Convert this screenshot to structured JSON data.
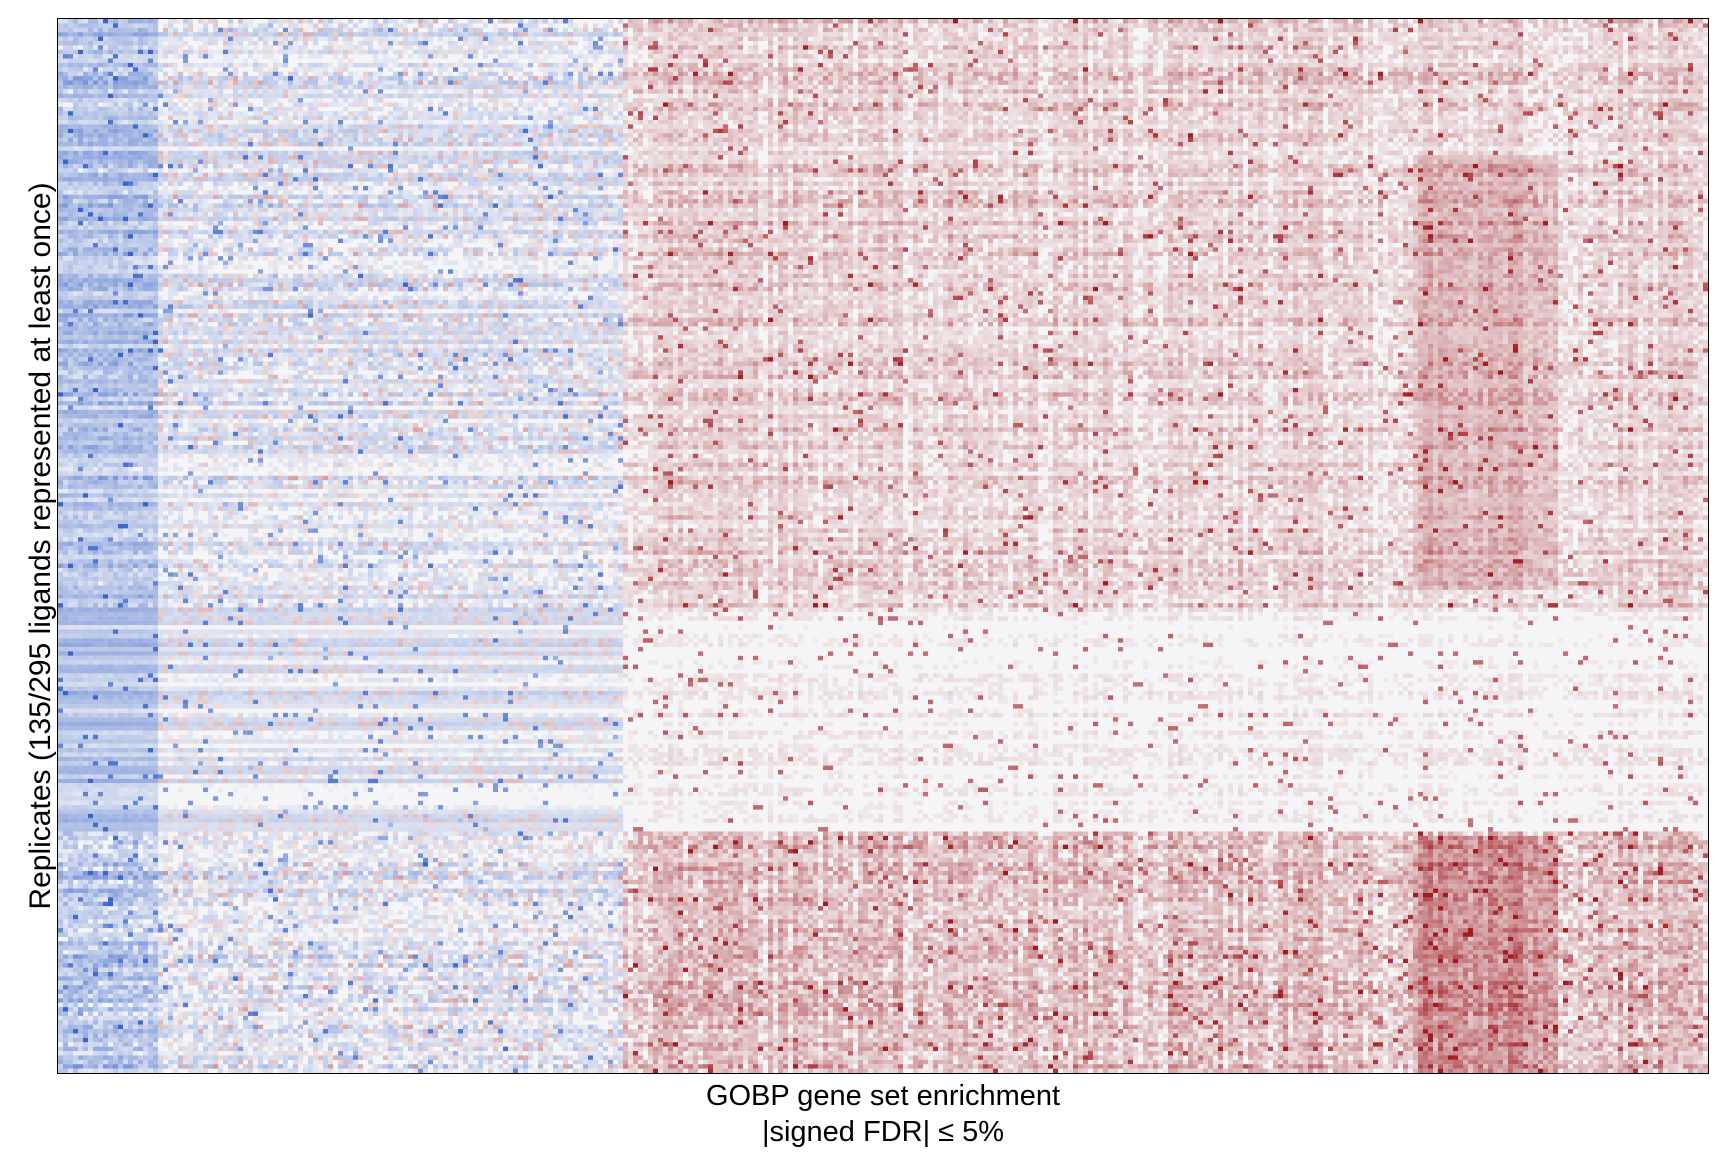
{
  "chart_data": {
    "type": "heatmap",
    "title": "",
    "xlabel_lines": [
      "GOBP gene set enrichment",
      "|signed FDR| ≤ 5%"
    ],
    "ylabel": "Replicates (135/295 ligands represented at least once)",
    "x_tick_labels": [],
    "y_tick_labels": [],
    "grid": false,
    "legend": "none",
    "colormap": {
      "negative": "#3a64c8",
      "neutral": "#f5f5f7",
      "positive": "#a01c22"
    },
    "dimensions": {
      "rows": 240,
      "columns": 330
    },
    "approximate_structure": {
      "column_blocks": [
        {
          "columns": [
            0,
            20
          ],
          "dominant_sign": "negative"
        },
        {
          "columns": [
            20,
            113
          ],
          "dominant_sign": "mixed/negative"
        },
        {
          "columns": [
            113,
            330
          ],
          "dominant_sign": "positive"
        }
      ],
      "row_blocks": [
        {
          "rows": [
            0,
            135
          ],
          "description": "mixed, moderate positive on right block"
        },
        {
          "rows": [
            135,
            185
          ],
          "description": "mostly neutral"
        },
        {
          "rows": [
            185,
            240
          ],
          "description": "strong positive on right block"
        }
      ]
    }
  }
}
